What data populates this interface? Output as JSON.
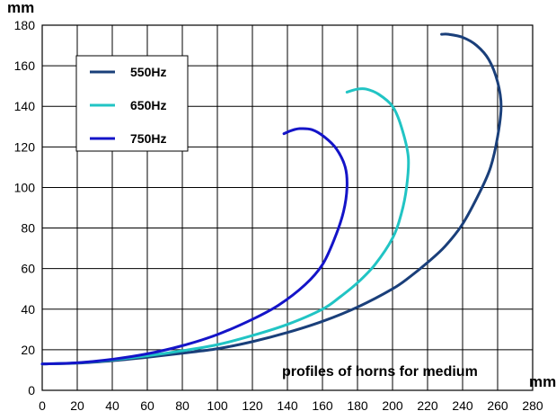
{
  "chart_data": {
    "type": "line",
    "xlabel": "mm",
    "ylabel": "mm",
    "annotation": "profiles of horns for medium",
    "xlim": [
      0,
      280
    ],
    "ylim": [
      0,
      180
    ],
    "x_ticks": [
      0,
      20,
      40,
      60,
      80,
      100,
      120,
      140,
      160,
      180,
      200,
      220,
      240,
      260,
      280
    ],
    "y_ticks": [
      0,
      20,
      40,
      60,
      80,
      100,
      120,
      140,
      160,
      180
    ],
    "grid": true,
    "legend_position": "top-left",
    "series": [
      {
        "name": "550Hz",
        "color": "#1a3f7a",
        "points": [
          [
            0,
            13
          ],
          [
            20,
            13.4
          ],
          [
            40,
            14.6
          ],
          [
            60,
            16.3
          ],
          [
            80,
            18.3
          ],
          [
            100,
            20.5
          ],
          [
            120,
            24
          ],
          [
            140,
            28.5
          ],
          [
            160,
            34
          ],
          [
            180,
            41
          ],
          [
            200,
            50
          ],
          [
            210,
            56
          ],
          [
            220,
            63
          ],
          [
            230,
            71
          ],
          [
            240,
            82
          ],
          [
            250,
            98
          ],
          [
            256,
            110
          ],
          [
            260,
            125
          ],
          [
            262,
            140
          ],
          [
            260,
            152
          ],
          [
            255,
            163
          ],
          [
            248,
            170
          ],
          [
            240,
            174
          ],
          [
            232,
            175.5
          ],
          [
            228,
            175.5
          ]
        ]
      },
      {
        "name": "650Hz",
        "color": "#21c4c4",
        "points": [
          [
            0,
            13
          ],
          [
            20,
            13.5
          ],
          [
            40,
            15
          ],
          [
            60,
            17
          ],
          [
            80,
            19.5
          ],
          [
            100,
            22.5
          ],
          [
            120,
            27
          ],
          [
            140,
            32.5
          ],
          [
            160,
            40
          ],
          [
            170,
            46
          ],
          [
            180,
            53
          ],
          [
            190,
            62
          ],
          [
            200,
            75
          ],
          [
            205,
            87
          ],
          [
            208,
            100
          ],
          [
            209,
            115
          ],
          [
            205,
            130
          ],
          [
            200,
            140
          ],
          [
            192,
            146
          ],
          [
            185,
            148.5
          ],
          [
            180,
            148.5
          ],
          [
            174,
            147
          ]
        ]
      },
      {
        "name": "750Hz",
        "color": "#1414c8",
        "points": [
          [
            0,
            13
          ],
          [
            20,
            13.6
          ],
          [
            40,
            15.3
          ],
          [
            60,
            18
          ],
          [
            80,
            22
          ],
          [
            100,
            27.5
          ],
          [
            120,
            35
          ],
          [
            135,
            42
          ],
          [
            150,
            52
          ],
          [
            160,
            62
          ],
          [
            167,
            75
          ],
          [
            172,
            88
          ],
          [
            174,
            100
          ],
          [
            173,
            110
          ],
          [
            168,
            119
          ],
          [
            161,
            125
          ],
          [
            154,
            128.5
          ],
          [
            147,
            129
          ],
          [
            142,
            128
          ],
          [
            138,
            126.5
          ]
        ]
      }
    ]
  }
}
